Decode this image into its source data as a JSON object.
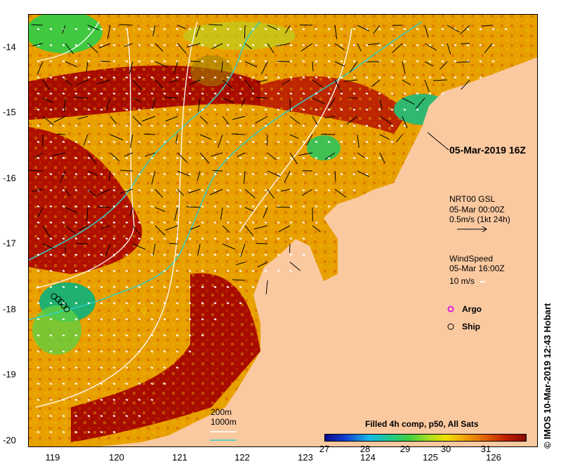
{
  "axes": {
    "lon_ticks": [
      "119",
      "120",
      "121",
      "122",
      "123",
      "124",
      "125",
      "126"
    ],
    "lat_ticks": [
      "-14",
      "-15",
      "-16",
      "-17",
      "-18",
      "-19",
      "-20"
    ]
  },
  "annotation": {
    "timestamp": "05-Mar-2019 16Z"
  },
  "currents_legend": {
    "line1": "NRT00 GSL",
    "line2": "05-Mar 00:00Z",
    "line3": "0.5m/s (1kt 24h)"
  },
  "wind_legend": {
    "line1": "WindSpeed",
    "line2": "05-Mar 16:00Z",
    "line3": "10 m/s"
  },
  "markers_legend": {
    "argo": "Argo",
    "ship": "Ship"
  },
  "isobath_legend": {
    "shallow": "200m",
    "deep": "1000m"
  },
  "colorbar": {
    "title": "Filled 4h comp, p50, All Sats",
    "ticks": [
      "27",
      "28",
      "29",
      "30",
      "31"
    ]
  },
  "credit": "© IMOS 10-Mar-2019 12:43 Hobart",
  "colors": {
    "land": "#fbc9a0",
    "warm_sea": "#a80c00",
    "mid_sea": "#e8a000",
    "cool_sea": "#30c050",
    "isobath_200": "#30d0c8",
    "isobath_1000": "#ffffff",
    "argo": "#e020e0"
  }
}
